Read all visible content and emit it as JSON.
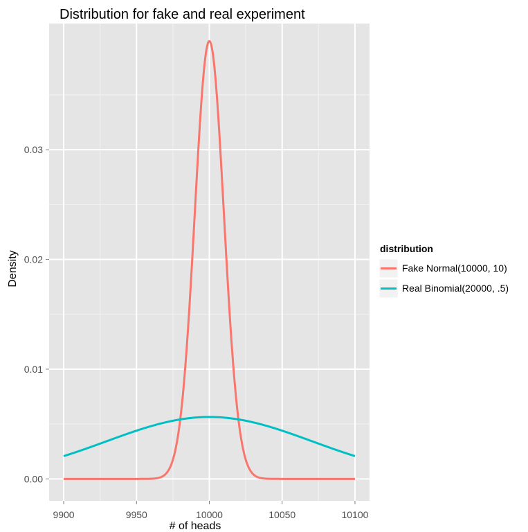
{
  "chart_data": {
    "type": "line",
    "title": "Distribution for fake and real experiment",
    "xlabel": "# of heads",
    "ylabel": "Density",
    "xlim": [
      9890,
      10110
    ],
    "ylim": [
      -0.002,
      0.0415
    ],
    "xticks": [
      9900,
      9950,
      10000,
      10050,
      10100
    ],
    "xtick_labels": [
      "9900",
      "9950",
      "10000",
      "10050",
      "10100"
    ],
    "yticks": [
      0.0,
      0.01,
      0.02,
      0.03
    ],
    "ytick_labels": [
      "0.00",
      "0.01",
      "0.02",
      "0.03"
    ],
    "grid": true,
    "legend": {
      "title": "distribution",
      "placement": "right"
    },
    "series": [
      {
        "name": "Fake Normal(10000, 10)",
        "color": "#F8766D",
        "distribution": {
          "kind": "normal",
          "mean": 10000,
          "sd": 10
        },
        "x_range": [
          9900,
          10100
        ]
      },
      {
        "name": "Real Binomial(20000, .5)",
        "color": "#00BFC4",
        "distribution": {
          "kind": "normal",
          "mean": 10000,
          "sd": 70.71
        },
        "x_range": [
          9900,
          10100
        ]
      }
    ]
  }
}
